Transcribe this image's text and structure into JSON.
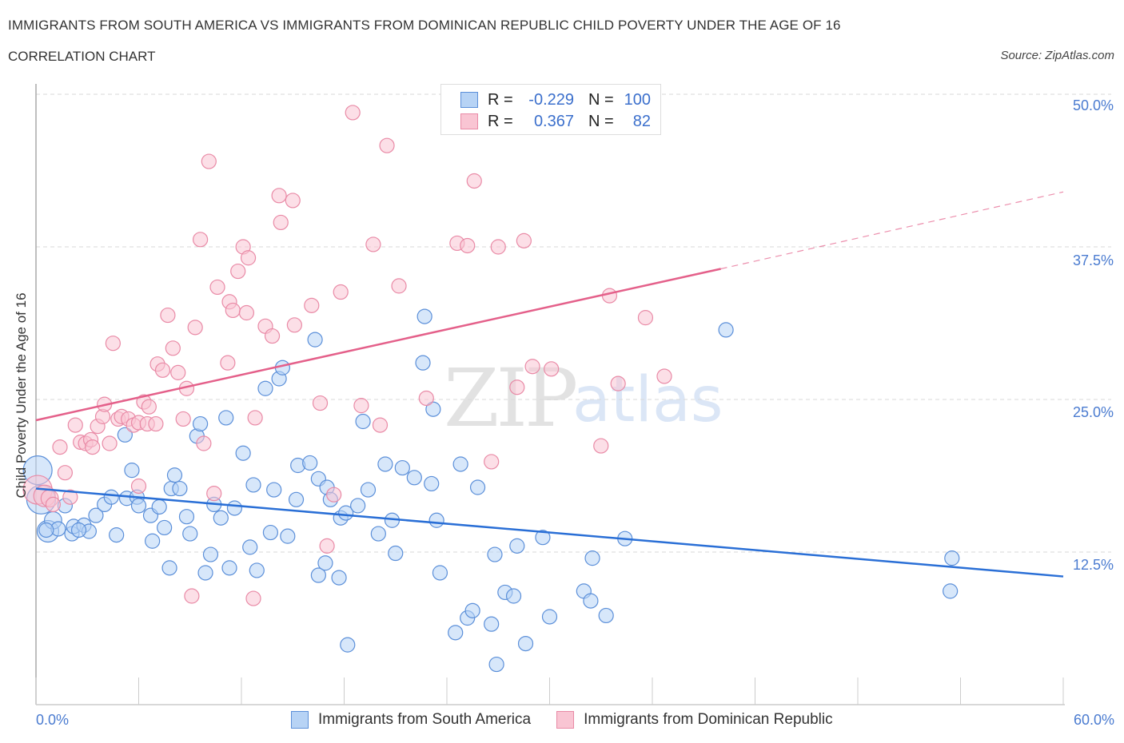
{
  "header": {
    "title": "IMMIGRANTS FROM SOUTH AMERICA VS IMMIGRANTS FROM DOMINICAN REPUBLIC CHILD POVERTY UNDER THE AGE OF 16",
    "subtitle": "CORRELATION CHART",
    "source": "Source: ZipAtlas.com"
  },
  "watermark": {
    "zip": "ZIP",
    "atlas": "atlas"
  },
  "legend": {
    "rows": [
      {
        "r_label": "R =",
        "r_value": "-0.229",
        "n_label": "N =",
        "n_value": "100"
      },
      {
        "r_label": "R =",
        "r_value": "0.367",
        "n_label": "N =",
        "n_value": "82"
      }
    ]
  },
  "colors": {
    "blue_fill": "#b7d3f5",
    "blue_stroke": "#5b8fd9",
    "blue_line": "#2a6fd6",
    "pink_fill": "#f9c5d3",
    "pink_stroke": "#e98aa6",
    "pink_line": "#e4608a",
    "tick_text": "#4a7bd0"
  },
  "chart_data": {
    "type": "scatter",
    "title": "IMMIGRANTS FROM SOUTH AMERICA VS IMMIGRANTS FROM DOMINICAN REPUBLIC CHILD POVERTY UNDER THE AGE OF 16",
    "subtitle": "CORRELATION CHART",
    "xlabel": "",
    "ylabel": "Child Poverty Under the Age of 16",
    "xlim": [
      0,
      60
    ],
    "ylim": [
      0,
      50
    ],
    "x_tick_labels": [
      "0.0%",
      "60.0%"
    ],
    "y_ticks": [
      12.5,
      25.0,
      37.5,
      50.0
    ],
    "y_tick_labels": [
      "12.5%",
      "25.0%",
      "37.5%",
      "50.0%"
    ],
    "grid": "horizontal-dashed",
    "legend_position": "bottom-center",
    "series": [
      {
        "name": "Immigrants from South America",
        "color": "#5b8fd9",
        "R": -0.229,
        "N": 100,
        "trend": {
          "x": [
            0,
            60
          ],
          "y": [
            17.7,
            10.5
          ],
          "style": "solid"
        },
        "points": [
          [
            0.1,
            19.2,
            2
          ],
          [
            0.3,
            16.8,
            2
          ],
          [
            0.7,
            14.2,
            1.5
          ],
          [
            1.0,
            15.1,
            1.2
          ],
          [
            1.3,
            14.4
          ],
          [
            1.7,
            16.3
          ],
          [
            2.1,
            14.0
          ],
          [
            2.2,
            14.6
          ],
          [
            2.8,
            14.7
          ],
          [
            3.1,
            14.2
          ],
          [
            3.5,
            15.5
          ],
          [
            4.0,
            16.4
          ],
          [
            4.4,
            17.0
          ],
          [
            4.7,
            13.9
          ],
          [
            5.2,
            22.1
          ],
          [
            5.3,
            16.9
          ],
          [
            5.6,
            19.2
          ],
          [
            5.9,
            17.0
          ],
          [
            6.0,
            16.3
          ],
          [
            6.7,
            15.5
          ],
          [
            6.8,
            13.4
          ],
          [
            7.2,
            16.2
          ],
          [
            7.5,
            14.5
          ],
          [
            7.8,
            11.2
          ],
          [
            7.9,
            17.7
          ],
          [
            8.1,
            18.8
          ],
          [
            8.4,
            17.7
          ],
          [
            8.8,
            15.4
          ],
          [
            9.0,
            14.0
          ],
          [
            9.4,
            22.0
          ],
          [
            9.6,
            23.0
          ],
          [
            9.9,
            10.8
          ],
          [
            10.2,
            12.3
          ],
          [
            10.4,
            16.4
          ],
          [
            10.8,
            15.3
          ],
          [
            11.1,
            23.5
          ],
          [
            11.3,
            11.2
          ],
          [
            11.6,
            16.1
          ],
          [
            12.1,
            20.6
          ],
          [
            12.5,
            12.9
          ],
          [
            12.7,
            18.0
          ],
          [
            12.9,
            11.0
          ],
          [
            13.4,
            25.9
          ],
          [
            13.7,
            14.1
          ],
          [
            13.9,
            17.6
          ],
          [
            14.2,
            26.7
          ],
          [
            14.4,
            27.6
          ],
          [
            14.7,
            13.8
          ],
          [
            15.2,
            16.8
          ],
          [
            15.3,
            19.6
          ],
          [
            16.0,
            19.8
          ],
          [
            16.3,
            29.9
          ],
          [
            16.5,
            18.5
          ],
          [
            16.5,
            10.6
          ],
          [
            16.9,
            11.6
          ],
          [
            17.0,
            17.8
          ],
          [
            17.2,
            16.8
          ],
          [
            17.7,
            10.4
          ],
          [
            17.8,
            15.3
          ],
          [
            18.1,
            15.7
          ],
          [
            18.2,
            4.9
          ],
          [
            18.8,
            16.3
          ],
          [
            19.1,
            23.2
          ],
          [
            19.4,
            17.6
          ],
          [
            20.0,
            14.0
          ],
          [
            20.4,
            19.7
          ],
          [
            20.8,
            15.1
          ],
          [
            21.0,
            12.4
          ],
          [
            21.4,
            19.4
          ],
          [
            22.1,
            18.6
          ],
          [
            22.6,
            28.0
          ],
          [
            22.7,
            31.8
          ],
          [
            23.1,
            18.1
          ],
          [
            23.2,
            24.2
          ],
          [
            23.4,
            15.1
          ],
          [
            23.6,
            10.8
          ],
          [
            24.5,
            5.9
          ],
          [
            24.8,
            19.7
          ],
          [
            25.2,
            7.1
          ],
          [
            25.5,
            7.7
          ],
          [
            25.8,
            17.8
          ],
          [
            26.6,
            6.6
          ],
          [
            26.8,
            12.3
          ],
          [
            26.9,
            3.3
          ],
          [
            27.4,
            9.2
          ],
          [
            27.9,
            8.9
          ],
          [
            28.1,
            13.0
          ],
          [
            28.6,
            5.0
          ],
          [
            29.6,
            13.7
          ],
          [
            30.0,
            7.2
          ],
          [
            32.0,
            9.3
          ],
          [
            32.4,
            8.5
          ],
          [
            32.5,
            12.0
          ],
          [
            33.3,
            7.3
          ],
          [
            34.4,
            13.6
          ],
          [
            40.3,
            30.7
          ],
          [
            53.5,
            12.0
          ],
          [
            53.4,
            9.3
          ],
          [
            0.6,
            14.3
          ],
          [
            2.5,
            14.3
          ]
        ]
      },
      {
        "name": "Immigrants from Dominican Republic",
        "color": "#e98aa6",
        "R": 0.367,
        "N": 82,
        "trend": {
          "x": [
            0,
            40
          ],
          "y": [
            23.3,
            35.7
          ],
          "style": "solid",
          "extension": {
            "x": [
              40,
              60
            ],
            "y": [
              35.7,
              42.0
            ],
            "style": "dashed"
          }
        },
        "points": [
          [
            0.1,
            17.6,
            2
          ],
          [
            0.5,
            17.1,
            1.5
          ],
          [
            0.8,
            16.9,
            1.2
          ],
          [
            1.0,
            16.4
          ],
          [
            1.4,
            21.1
          ],
          [
            1.7,
            19.0
          ],
          [
            2.0,
            17.0
          ],
          [
            2.3,
            22.9
          ],
          [
            2.6,
            21.5
          ],
          [
            2.9,
            21.4
          ],
          [
            3.2,
            21.7
          ],
          [
            3.3,
            21.1
          ],
          [
            3.6,
            22.8
          ],
          [
            3.9,
            23.6
          ],
          [
            4.0,
            24.6
          ],
          [
            4.3,
            21.4
          ],
          [
            4.5,
            29.6
          ],
          [
            4.8,
            23.4
          ],
          [
            5.0,
            23.6
          ],
          [
            5.4,
            23.4
          ],
          [
            5.7,
            22.9
          ],
          [
            6.0,
            23.1
          ],
          [
            6.0,
            17.9
          ],
          [
            6.3,
            24.8
          ],
          [
            6.5,
            23.0
          ],
          [
            6.6,
            24.4
          ],
          [
            7.0,
            23.0
          ],
          [
            7.1,
            27.9
          ],
          [
            7.4,
            27.4
          ],
          [
            7.7,
            31.9
          ],
          [
            8.0,
            29.2
          ],
          [
            8.3,
            27.2
          ],
          [
            8.6,
            23.4
          ],
          [
            8.8,
            25.9
          ],
          [
            9.1,
            8.9
          ],
          [
            9.3,
            30.9
          ],
          [
            9.6,
            38.1
          ],
          [
            9.8,
            21.4
          ],
          [
            10.1,
            44.5
          ],
          [
            10.4,
            17.3
          ],
          [
            10.6,
            34.2
          ],
          [
            11.2,
            28.0
          ],
          [
            11.3,
            33.0
          ],
          [
            11.5,
            32.3
          ],
          [
            11.8,
            35.5
          ],
          [
            12.1,
            37.5
          ],
          [
            12.3,
            32.1
          ],
          [
            12.4,
            36.6
          ],
          [
            12.7,
            8.7
          ],
          [
            12.8,
            23.5
          ],
          [
            13.4,
            31.0
          ],
          [
            13.8,
            30.2
          ],
          [
            14.2,
            41.7
          ],
          [
            14.3,
            39.5
          ],
          [
            15.0,
            41.3
          ],
          [
            15.1,
            31.1
          ],
          [
            16.1,
            32.7
          ],
          [
            16.6,
            24.7
          ],
          [
            17.0,
            13.0
          ],
          [
            17.4,
            17.2
          ],
          [
            17.8,
            33.8
          ],
          [
            18.5,
            48.5
          ],
          [
            19.0,
            24.5
          ],
          [
            19.7,
            37.7
          ],
          [
            20.1,
            22.9
          ],
          [
            20.5,
            45.8
          ],
          [
            21.2,
            34.3
          ],
          [
            22.8,
            25.1
          ],
          [
            24.6,
            37.8
          ],
          [
            25.2,
            37.6
          ],
          [
            25.6,
            42.9
          ],
          [
            26.6,
            19.9
          ],
          [
            27.0,
            37.5
          ],
          [
            28.1,
            26.0
          ],
          [
            28.5,
            38.0
          ],
          [
            29.0,
            27.7
          ],
          [
            30.1,
            27.5
          ],
          [
            33.0,
            21.2
          ],
          [
            33.5,
            33.5
          ],
          [
            34.0,
            26.3
          ],
          [
            35.6,
            31.7
          ],
          [
            36.7,
            26.9
          ]
        ]
      }
    ]
  },
  "bottom_legend": [
    {
      "label": "Immigrants from South America"
    },
    {
      "label": "Immigrants from Dominican Republic"
    }
  ]
}
